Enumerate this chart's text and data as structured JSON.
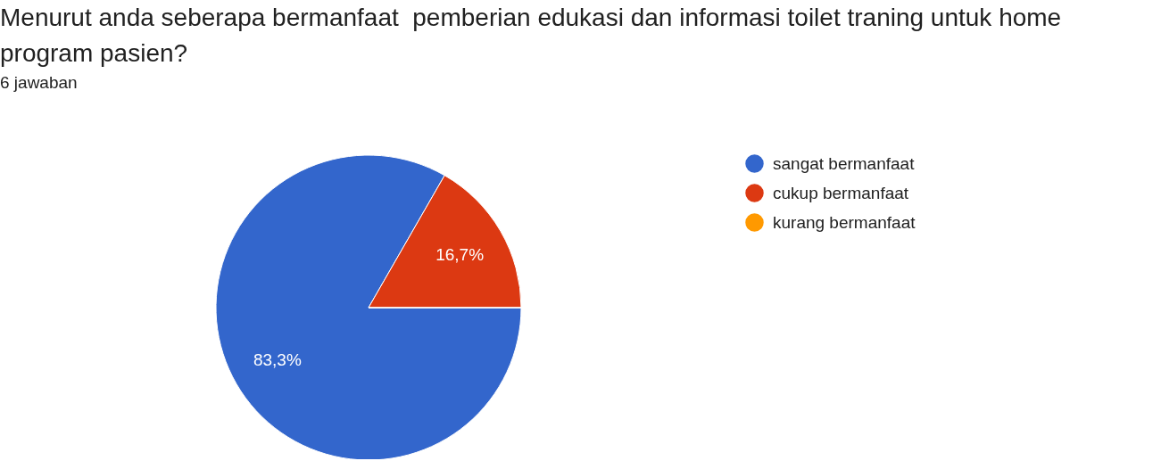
{
  "chart_data": {
    "type": "pie",
    "title": "Menurut anda seberapa bermanfaat  pemberian edukasi dan informasi toilet traning untuk home program pasien?",
    "subtitle": "6 jawaban",
    "categories": [
      "sangat bermanfaat",
      "cukup bermanfaat",
      "kurang bermanfaat"
    ],
    "values": [
      83.3,
      16.7,
      0
    ],
    "colors": [
      "#3366cc",
      "#dc3912",
      "#ff9900"
    ],
    "value_labels": [
      "83,3%",
      "16,7%",
      null
    ],
    "legend": "right"
  }
}
